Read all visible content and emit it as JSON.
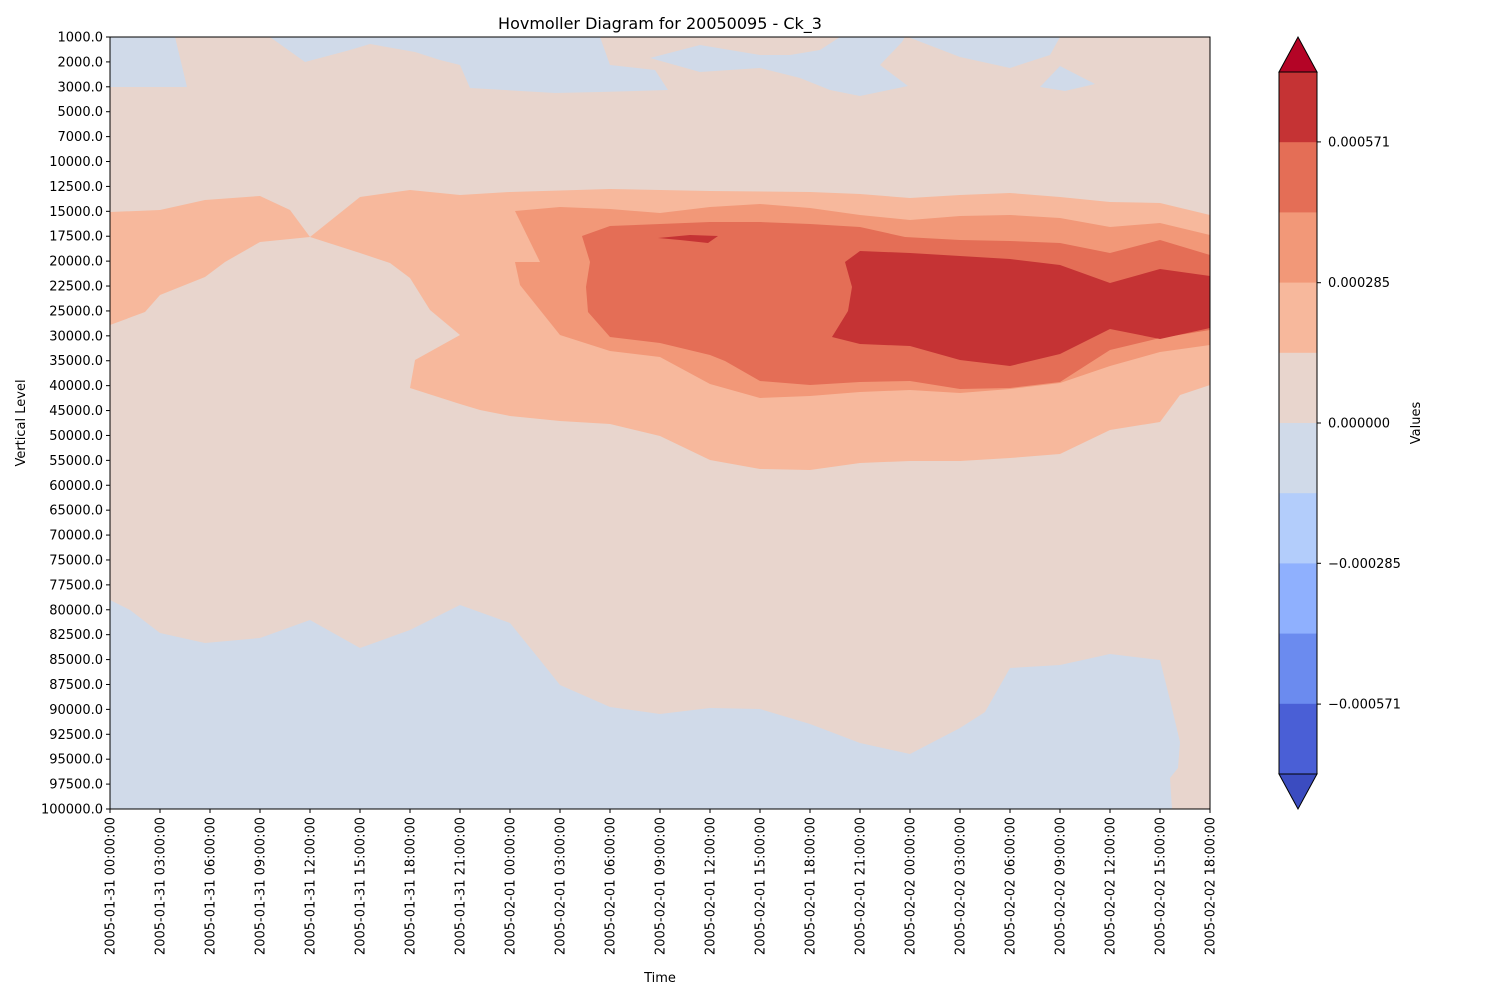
{
  "chart_data": {
    "type": "heatmap",
    "subtype": "filled-contour (Hovmoller)",
    "title": "Hovmoller Diagram for 20050095 - Ck_3",
    "xlabel": "Time",
    "ylabel": "Vertical Level",
    "y_inverted": true,
    "grid": false,
    "x_ticks": [
      "2005-01-31 00:00:00",
      "2005-01-31 03:00:00",
      "2005-01-31 06:00:00",
      "2005-01-31 09:00:00",
      "2005-01-31 12:00:00",
      "2005-01-31 15:00:00",
      "2005-01-31 18:00:00",
      "2005-01-31 21:00:00",
      "2005-02-01 00:00:00",
      "2005-02-01 03:00:00",
      "2005-02-01 06:00:00",
      "2005-02-01 09:00:00",
      "2005-02-01 12:00:00",
      "2005-02-01 15:00:00",
      "2005-02-01 18:00:00",
      "2005-02-01 21:00:00",
      "2005-02-02 00:00:00",
      "2005-02-02 03:00:00",
      "2005-02-02 06:00:00",
      "2005-02-02 09:00:00",
      "2005-02-02 12:00:00",
      "2005-02-02 15:00:00",
      "2005-02-02 18:00:00"
    ],
    "y_ticks": [
      "1000.0",
      "2000.0",
      "3000.0",
      "5000.0",
      "7000.0",
      "10000.0",
      "12500.0",
      "15000.0",
      "17500.0",
      "20000.0",
      "22500.0",
      "25000.0",
      "30000.0",
      "35000.0",
      "40000.0",
      "45000.0",
      "50000.0",
      "55000.0",
      "60000.0",
      "65000.0",
      "70000.0",
      "75000.0",
      "77500.0",
      "80000.0",
      "82500.0",
      "85000.0",
      "87500.0",
      "90000.0",
      "92500.0",
      "95000.0",
      "97500.0",
      "100000.0"
    ],
    "colorbar": {
      "label": "Values",
      "extend": "both",
      "tick_labels": [
        "0.000571",
        "0.000285",
        "0.000000",
        "−0.000285",
        "−0.000571"
      ],
      "tick_values": [
        0.000571,
        0.000285,
        0.0,
        -0.000285,
        -0.000571
      ],
      "levels": [
        -0.000713,
        -0.000571,
        -0.000428,
        -0.000285,
        -0.000143,
        0.0,
        0.000143,
        0.000285,
        0.000428,
        0.000571,
        0.000713
      ],
      "colors": [
        "#3b4cc0",
        "#4a5fd6",
        "#6b8bef",
        "#8fb0fe",
        "#b3cdfb",
        "#d0dae9",
        "#e8d5cd",
        "#f7b89c",
        "#f29878",
        "#e46e56",
        "#c53334",
        "#b40426"
      ]
    },
    "regions": [
      {
        "level_color": "#f7b89c",
        "description": "upper tropospheric positive band",
        "outline": [
          [
            "2005-01-31 00:00:00",
            "15000.0"
          ],
          [
            "2005-01-31 03:00:00",
            "15000.0"
          ],
          [
            "2005-01-31 06:00:00",
            "12500.0"
          ],
          [
            "2005-01-31 09:00:00",
            "12500.0"
          ],
          [
            "2005-01-31 12:00:00",
            "17500.0"
          ],
          [
            "2005-01-31 15:00:00",
            "12500.0"
          ],
          [
            "2005-01-31 18:00:00",
            "12500.0"
          ],
          [
            "2005-01-31 21:00:00",
            "12500.0"
          ],
          [
            "2005-02-01 06:00:00",
            "12500.0"
          ],
          [
            "2005-02-01 21:00:00",
            "12500.0"
          ],
          [
            "2005-02-02 03:00:00",
            "12500.0"
          ],
          [
            "2005-02-02 15:00:00",
            "15000.0"
          ],
          [
            "2005-02-02 18:00:00",
            "15000.0"
          ],
          [
            "2005-02-02 18:00:00",
            "40000.0"
          ],
          [
            "2005-02-02 15:00:00",
            "50000.0"
          ],
          [
            "2005-02-02 09:00:00",
            "55000.0"
          ],
          [
            "2005-02-02 00:00:00",
            "55000.0"
          ],
          [
            "2005-02-01 15:00:00",
            "55000.0"
          ],
          [
            "2005-02-01 12:00:00",
            "55000.0"
          ],
          [
            "2005-02-01 09:00:00",
            "50000.0"
          ],
          [
            "2005-02-01 00:00:00",
            "45000.0"
          ],
          [
            "2005-01-31 18:00:00",
            "40000.0"
          ],
          [
            "2005-01-31 18:00:00",
            "35000.0"
          ],
          [
            "2005-01-31 21:00:00",
            "30000.0"
          ],
          [
            "2005-01-31 18:00:00",
            "22500.0"
          ],
          [
            "2005-01-31 12:00:00",
            "17500.0"
          ],
          [
            "2005-01-31 09:00:00",
            "17500.0"
          ],
          [
            "2005-01-31 06:00:00",
            "20000.0"
          ],
          [
            "2005-01-31 03:00:00",
            "25000.0"
          ],
          [
            "2005-01-31 00:00:00",
            "30000.0"
          ]
        ]
      },
      {
        "level_color": "#f29878",
        "outline": [
          [
            "2005-02-01 00:00:00",
            "15000.0"
          ],
          [
            "2005-02-01 03:00:00",
            "15000.0"
          ],
          [
            "2005-02-01 09:00:00",
            "15000.0"
          ],
          [
            "2005-02-01 15:00:00",
            "15000.0"
          ],
          [
            "2005-02-01 21:00:00",
            "15000.0"
          ],
          [
            "2005-02-02 00:00:00",
            "15000.0"
          ],
          [
            "2005-02-02 12:00:00",
            "15000.0"
          ],
          [
            "2005-02-02 18:00:00",
            "17500.0"
          ],
          [
            "2005-02-02 18:00:00",
            "35000.0"
          ],
          [
            "2005-02-02 15:00:00",
            "35000.0"
          ],
          [
            "2005-02-02 12:00:00",
            "40000.0"
          ],
          [
            "2005-02-02 06:00:00",
            "45000.0"
          ],
          [
            "2005-02-02 00:00:00",
            "45000.0"
          ],
          [
            "2005-02-01 18:00:00",
            "50000.0"
          ],
          [
            "2005-02-01 15:00:00",
            "50000.0"
          ],
          [
            "2005-02-01 12:00:00",
            "45000.0"
          ],
          [
            "2005-02-01 09:00:00",
            "40000.0"
          ],
          [
            "2005-02-01 06:00:00",
            "40000.0"
          ],
          [
            "2005-02-01 03:00:00",
            "35000.0"
          ],
          [
            "2005-02-01 00:00:00",
            "25000.0"
          ],
          [
            "2005-02-01 00:00:00",
            "22500.0"
          ]
        ]
      },
      {
        "level_color": "#e46e56",
        "outline": [
          [
            "2005-02-01 03:00:00",
            "17500.0"
          ],
          [
            "2005-02-01 06:00:00",
            "17500.0"
          ],
          [
            "2005-02-01 15:00:00",
            "15000.0"
          ],
          [
            "2005-02-01 21:00:00",
            "17500.0"
          ],
          [
            "2005-02-02 00:00:00",
            "17500.0"
          ],
          [
            "2005-02-02 09:00:00",
            "17500.0"
          ],
          [
            "2005-02-02 12:00:00",
            "20000.0"
          ],
          [
            "2005-02-02 15:00:00",
            "17500.0"
          ],
          [
            "2005-02-02 18:00:00",
            "20000.0"
          ],
          [
            "2005-02-02 18:00:00",
            "30000.0"
          ],
          [
            "2005-02-02 15:00:00",
            "35000.0"
          ],
          [
            "2005-02-02 12:00:00",
            "35000.0"
          ],
          [
            "2005-02-02 09:00:00",
            "40000.0"
          ],
          [
            "2005-02-02 03:00:00",
            "40000.0"
          ],
          [
            "2005-02-02 00:00:00",
            "40000.0"
          ],
          [
            "2005-02-01 15:00:00",
            "40000.0"
          ],
          [
            "2005-02-01 12:00:00",
            "35000.0"
          ],
          [
            "2005-02-01 06:00:00",
            "30000.0"
          ],
          [
            "2005-02-01 03:00:00",
            "25000.0"
          ]
        ]
      },
      {
        "level_color": "#c53334",
        "outline": [
          [
            "2005-02-01 21:00:00",
            "20000.0"
          ],
          [
            "2005-02-02 00:00:00",
            "20000.0"
          ],
          [
            "2005-02-02 03:00:00",
            "20000.0"
          ],
          [
            "2005-02-02 09:00:00",
            "20000.0"
          ],
          [
            "2005-02-02 12:00:00",
            "22500.0"
          ],
          [
            "2005-02-02 15:00:00",
            "20000.0"
          ],
          [
            "2005-02-02 18:00:00",
            "22500.0"
          ],
          [
            "2005-02-02 18:00:00",
            "30000.0"
          ],
          [
            "2005-02-02 15:00:00",
            "30000.0"
          ],
          [
            "2005-02-02 12:00:00",
            "30000.0"
          ],
          [
            "2005-02-02 09:00:00",
            "35000.0"
          ],
          [
            "2005-02-02 06:00:00",
            "35000.0"
          ],
          [
            "2005-02-02 03:00:00",
            "35000.0"
          ],
          [
            "2005-02-02 00:00:00",
            "30000.0"
          ],
          [
            "2005-02-01 21:00:00",
            "30000.0"
          ],
          [
            "2005-02-01 18:00:00",
            "30000.0"
          ]
        ]
      },
      {
        "level_color": "#c53334",
        "description": "small maximum near 2005-02-01 11:00",
        "outline": [
          [
            "2005-02-01 09:00:00",
            "17500.0"
          ],
          [
            "2005-02-01 12:00:00",
            "17500.0"
          ],
          [
            "2005-02-01 12:00:00",
            "20000.0"
          ]
        ]
      },
      {
        "level_color": "#d0dae9",
        "description": "near-surface negative layer",
        "outline": [
          [
            "2005-01-31 00:00:00",
            "80000.0"
          ],
          [
            "2005-01-31 03:00:00",
            "82500.0"
          ],
          [
            "2005-01-31 06:00:00",
            "82500.0"
          ],
          [
            "2005-01-31 09:00:00",
            "82500.0"
          ],
          [
            "2005-01-31 12:00:00",
            "82500.0"
          ],
          [
            "2005-01-31 15:00:00",
            "85000.0"
          ],
          [
            "2005-01-31 18:00:00",
            "82500.0"
          ],
          [
            "2005-01-31 21:00:00",
            "80000.0"
          ],
          [
            "2005-02-01 00:00:00",
            "82500.0"
          ],
          [
            "2005-02-01 03:00:00",
            "87500.0"
          ],
          [
            "2005-02-01 06:00:00",
            "90000.0"
          ],
          [
            "2005-02-01 09:00:00",
            "90000.0"
          ],
          [
            "2005-02-01 15:00:00",
            "90000.0"
          ],
          [
            "2005-02-01 21:00:00",
            "92500.0"
          ],
          [
            "2005-02-02 00:00:00",
            "95000.0"
          ],
          [
            "2005-02-02 03:00:00",
            "92500.0"
          ],
          [
            "2005-02-02 06:00:00",
            "85000.0"
          ],
          [
            "2005-02-02 09:00:00",
            "85000.0"
          ],
          [
            "2005-02-02 12:00:00",
            "85000.0"
          ],
          [
            "2005-02-02 15:00:00",
            "85000.0"
          ],
          [
            "2005-02-02 15:00:00",
            "100000.0"
          ],
          [
            "2005-01-31 00:00:00",
            "100000.0"
          ]
        ]
      },
      {
        "level_color": "#d0dae9",
        "description": "upper-level negative patches near top",
        "outline": [
          [
            "2005-01-31 00:00:00",
            "1000.0"
          ],
          [
            "2005-01-31 03:00:00",
            "1000.0"
          ],
          [
            "2005-01-31 03:00:00",
            "3000.0"
          ],
          [
            "2005-01-31 00:00:00",
            "3000.0"
          ]
        ]
      }
    ]
  }
}
